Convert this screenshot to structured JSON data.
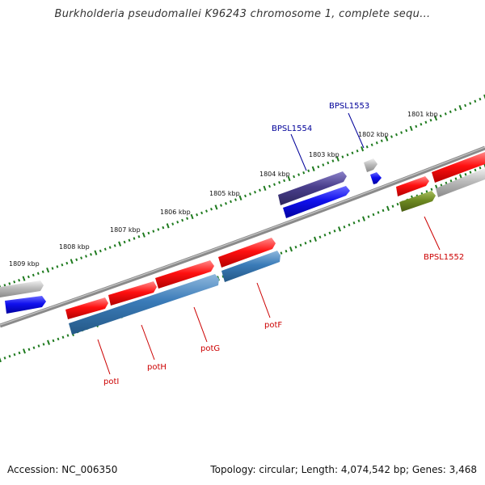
{
  "title": "Burkholderia pseudomallei K96243 chromosome 1, complete sequ...",
  "footer": {
    "accession": "Accession: NC_006350",
    "summary": "Topology: circular; Length: 4,074,542 bp; Genes: 3,468"
  },
  "colors": {
    "forward_gene": "#ff1010",
    "reverse_gene": "#3a7bb8",
    "grey_gene": "#b8b8b8",
    "blue_gene": "#1010ee",
    "purple_gene": "#4a3f8c",
    "olive_gene": "#6e8a22",
    "tick": "#1e7a1e",
    "backbone": "#808080",
    "label_red": "#cc0000",
    "label_blue": "#000099"
  },
  "scale_labels": [
    "1801 kbp",
    "1802 kbp",
    "1803 kbp",
    "1804 kbp",
    "1805 kbp",
    "1806 kbp",
    "1807 kbp",
    "1808 kbp",
    "1809 kbp"
  ],
  "gene_labels": {
    "potI": "potI",
    "potH": "potH",
    "potG": "potG",
    "potF": "potF",
    "BPSL1552": "BPSL1552",
    "BPSL1553": "BPSL1553",
    "BPSL1554": "BPSL1554"
  }
}
